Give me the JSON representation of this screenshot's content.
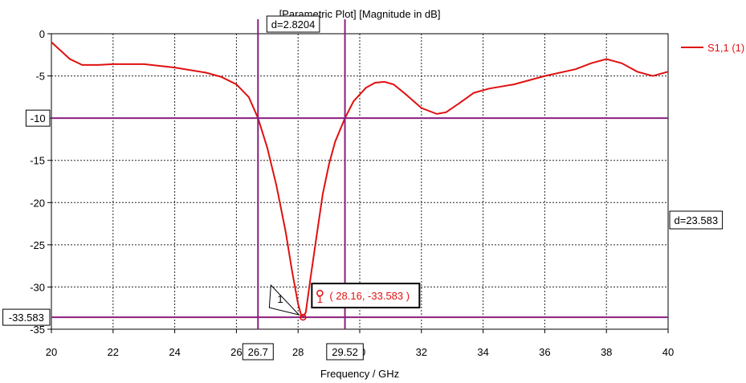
{
  "chart_data": {
    "type": "line",
    "title": "[Parametric Plot] [Magnitude in dB]",
    "xlabel": "Frequency / GHz",
    "ylabel": "",
    "xlim": [
      20,
      40
    ],
    "ylim": [
      -35,
      0
    ],
    "x_ticks": [
      20,
      22,
      24,
      26,
      28,
      30,
      32,
      34,
      36,
      38,
      40
    ],
    "y_ticks": [
      0,
      -5,
      -10,
      -15,
      -20,
      -25,
      -30,
      -35
    ],
    "grid": true,
    "legend_position": "top-right",
    "series": [
      {
        "name": "S1,1 (1)",
        "color": "#e01010",
        "x": [
          20.0,
          20.3,
          20.6,
          21.0,
          21.5,
          22.0,
          23.0,
          24.0,
          25.0,
          25.5,
          26.0,
          26.4,
          26.7,
          27.0,
          27.3,
          27.6,
          27.8,
          28.0,
          28.1,
          28.16,
          28.25,
          28.4,
          28.6,
          28.8,
          29.0,
          29.2,
          29.52,
          29.8,
          30.2,
          30.5,
          30.8,
          31.1,
          31.5,
          32.0,
          32.5,
          32.8,
          33.2,
          33.7,
          34.2,
          35.0,
          36.0,
          37.0,
          37.5,
          38.0,
          38.5,
          39.0,
          39.5,
          40.0
        ],
        "y": [
          -1.0,
          -2.0,
          -3.0,
          -3.7,
          -3.7,
          -3.6,
          -3.6,
          -4.0,
          -4.6,
          -5.1,
          -6.0,
          -7.5,
          -10.0,
          -13.5,
          -18.0,
          -23.5,
          -28.0,
          -32.0,
          -33.3,
          -33.583,
          -33.0,
          -29.0,
          -24.0,
          -19.0,
          -15.5,
          -12.8,
          -10.0,
          -8.0,
          -6.4,
          -5.8,
          -5.7,
          -6.0,
          -7.2,
          -8.8,
          -9.5,
          -9.3,
          -8.3,
          -7.0,
          -6.5,
          -6.0,
          -5.0,
          -4.2,
          -3.5,
          -3.0,
          -3.5,
          -4.5,
          -5.0,
          -4.5
        ]
      }
    ],
    "markers": {
      "h_lines": [
        {
          "value": -10,
          "label": "-10"
        },
        {
          "value": -33.583,
          "label": "-33.583"
        }
      ],
      "v_lines": [
        {
          "value": 26.7,
          "label": "26.7"
        },
        {
          "value": 29.52,
          "label": "29.52"
        }
      ],
      "d_horizontal": "d=2.8204",
      "d_vertical": "d=23.583",
      "point": {
        "x": 28.16,
        "y": -33.583,
        "id": "1",
        "label": "( 28.16, -33.583 )"
      }
    }
  }
}
